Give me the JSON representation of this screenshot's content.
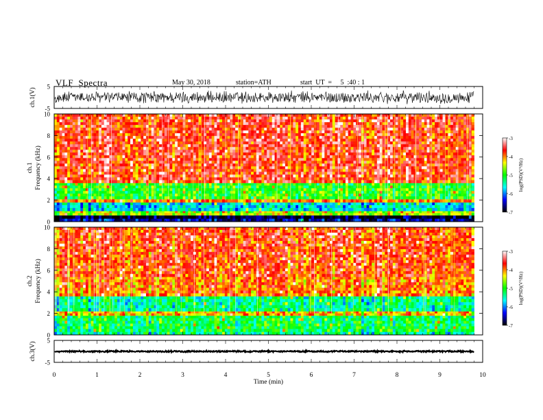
{
  "header": {
    "title": "VLF  Spectra",
    "date": "May 30, 2018",
    "station": "station=ATH",
    "start": "start  UT  =     5  :40 : 1"
  },
  "chart_data": {
    "type": "heatmap",
    "xlabel": "Time  (min)",
    "xlim": [
      0,
      10
    ],
    "xticks": [
      "0",
      "1",
      "2",
      "3",
      "4",
      "5",
      "6",
      "7",
      "8",
      "9",
      "10"
    ],
    "record_end_min": 9.8,
    "panels": [
      {
        "name": "ch1-waveform",
        "type": "line",
        "ylabel": "ch.1(V)",
        "ylim": [
          -5,
          5
        ],
        "yticks": [
          "-5",
          "5"
        ],
        "amplitude_v": 2.5
      },
      {
        "name": "ch1-spectrogram",
        "type": "heatmap",
        "ylabel_lines": [
          "ch.1",
          "Frequency  (kHz)"
        ],
        "ylim": [
          0,
          10
        ],
        "yticks": [
          "0",
          "2",
          "4",
          "6",
          "8",
          "10"
        ],
        "bands_khz": [
          {
            "from": 0,
            "to": 0.3,
            "psd": -6.6
          },
          {
            "from": 0.3,
            "to": 0.6,
            "psd": -7.0
          },
          {
            "from": 0.6,
            "to": 1.0,
            "psd": -4.6
          },
          {
            "from": 1.0,
            "to": 1.8,
            "psd": -5.7
          },
          {
            "from": 1.8,
            "to": 2.1,
            "psd": -4.0
          },
          {
            "from": 2.1,
            "to": 3.6,
            "psd": -5.0
          },
          {
            "from": 3.6,
            "to": 10,
            "psd": -3.7
          }
        ]
      },
      {
        "name": "ch2-spectrogram",
        "type": "heatmap",
        "ylabel_lines": [
          "ch.2",
          "Frequency  (kHz)"
        ],
        "ylim": [
          0,
          10
        ],
        "yticks": [
          "0",
          "2",
          "4",
          "6",
          "8",
          "10"
        ],
        "bands_khz": [
          {
            "from": 0,
            "to": 0.3,
            "psd": -5.4
          },
          {
            "from": 0.3,
            "to": 1.8,
            "psd": -5.2
          },
          {
            "from": 1.8,
            "to": 2.2,
            "psd": -4.2
          },
          {
            "from": 2.2,
            "to": 3.6,
            "psd": -5.4
          },
          {
            "from": 3.6,
            "to": 5.4,
            "psd": -4.0
          },
          {
            "from": 5.4,
            "to": 10,
            "psd": -3.8
          }
        ]
      },
      {
        "name": "ch3-waveform",
        "type": "line",
        "ylabel": "ch.3(V)",
        "ylim": [
          -5,
          5
        ],
        "yticks": [
          "-5",
          "5"
        ],
        "amplitude_v": 0.3
      }
    ],
    "colorbar": {
      "label": "log(PSD)(V²/Hz)",
      "range": [
        -7,
        -3
      ],
      "ticks": [
        "-3",
        "-4",
        "-5",
        "-6",
        "-7"
      ],
      "colors": [
        "#000000",
        "#0000ff",
        "#00ffff",
        "#00ff00",
        "#ffff00",
        "#ff0000",
        "#ffffff"
      ]
    }
  }
}
